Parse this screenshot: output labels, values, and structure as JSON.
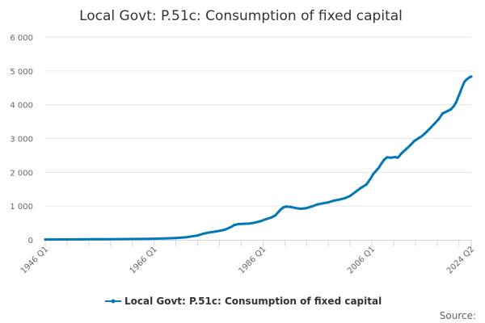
{
  "chart_data": {
    "type": "line",
    "title": "Local Govt: P.51c: Consumption of fixed capital",
    "xlabel": "",
    "ylabel": "",
    "ylim": [
      0,
      6000
    ],
    "y_ticks": [
      {
        "value": 0,
        "label": "0"
      },
      {
        "value": 1000,
        "label": "1 000"
      },
      {
        "value": 2000,
        "label": "2 000"
      },
      {
        "value": 3000,
        "label": "3 000"
      },
      {
        "value": 4000,
        "label": "4 000"
      },
      {
        "value": 5000,
        "label": "5 000"
      },
      {
        "value": 6000,
        "label": "6 000"
      }
    ],
    "x_range": [
      1946.0,
      2024.25
    ],
    "x_ticks": [
      {
        "value": 1946.0,
        "label": "1946 Q1"
      },
      {
        "value": 1966.0,
        "label": "1966 Q1"
      },
      {
        "value": 1986.0,
        "label": "1986 Q1"
      },
      {
        "value": 2006.0,
        "label": "2006 Q1"
      },
      {
        "value": 2024.25,
        "label": "2024 Q2"
      }
    ],
    "grid": true,
    "legend_position": "bottom-center",
    "series": [
      {
        "name": "Local Govt: P.51c: Consumption of fixed capital",
        "color": "#0077b6",
        "points": [
          [
            1946,
            10
          ],
          [
            1950,
            12
          ],
          [
            1955,
            16
          ],
          [
            1960,
            22
          ],
          [
            1965,
            32
          ],
          [
            1968,
            42
          ],
          [
            1970,
            55
          ],
          [
            1972,
            80
          ],
          [
            1974,
            130
          ],
          [
            1975,
            180
          ],
          [
            1976,
            215
          ],
          [
            1977,
            240
          ],
          [
            1978,
            265
          ],
          [
            1979,
            300
          ],
          [
            1980,
            370
          ],
          [
            1980.75,
            440
          ],
          [
            1981.5,
            465
          ],
          [
            1982.5,
            475
          ],
          [
            1983.5,
            480
          ],
          [
            1984.5,
            510
          ],
          [
            1985.5,
            550
          ],
          [
            1986.5,
            610
          ],
          [
            1987.5,
            660
          ],
          [
            1988.25,
            720
          ],
          [
            1988.75,
            810
          ],
          [
            1989.25,
            900
          ],
          [
            1989.75,
            960
          ],
          [
            1990.25,
            985
          ],
          [
            1991,
            975
          ],
          [
            1992,
            940
          ],
          [
            1993,
            920
          ],
          [
            1994,
            940
          ],
          [
            1995,
            990
          ],
          [
            1996,
            1050
          ],
          [
            1997,
            1080
          ],
          [
            1998,
            1110
          ],
          [
            1999,
            1160
          ],
          [
            2000,
            1190
          ],
          [
            2001,
            1230
          ],
          [
            2002,
            1300
          ],
          [
            2003,
            1420
          ],
          [
            2004,
            1540
          ],
          [
            2005,
            1640
          ],
          [
            2005.75,
            1810
          ],
          [
            2006.25,
            1950
          ],
          [
            2006.75,
            2040
          ],
          [
            2007.25,
            2130
          ],
          [
            2007.75,
            2260
          ],
          [
            2008.25,
            2370
          ],
          [
            2008.75,
            2440
          ],
          [
            2009.5,
            2430
          ],
          [
            2010.25,
            2450
          ],
          [
            2010.75,
            2430
          ],
          [
            2011.5,
            2570
          ],
          [
            2012.25,
            2680
          ],
          [
            2013,
            2790
          ],
          [
            2013.75,
            2920
          ],
          [
            2014.5,
            3000
          ],
          [
            2015.25,
            3080
          ],
          [
            2016,
            3190
          ],
          [
            2016.75,
            3310
          ],
          [
            2017.5,
            3440
          ],
          [
            2018.25,
            3570
          ],
          [
            2019,
            3740
          ],
          [
            2019.75,
            3800
          ],
          [
            2020.5,
            3860
          ],
          [
            2021,
            3950
          ],
          [
            2021.5,
            4080
          ],
          [
            2022,
            4280
          ],
          [
            2022.5,
            4490
          ],
          [
            2023,
            4680
          ],
          [
            2023.5,
            4760
          ],
          [
            2024,
            4820
          ],
          [
            2024.25,
            4830
          ]
        ]
      }
    ]
  },
  "legend": {
    "label": "Local Govt: P.51c: Consumption of fixed capital"
  },
  "footer": {
    "source_label": "Source:"
  }
}
